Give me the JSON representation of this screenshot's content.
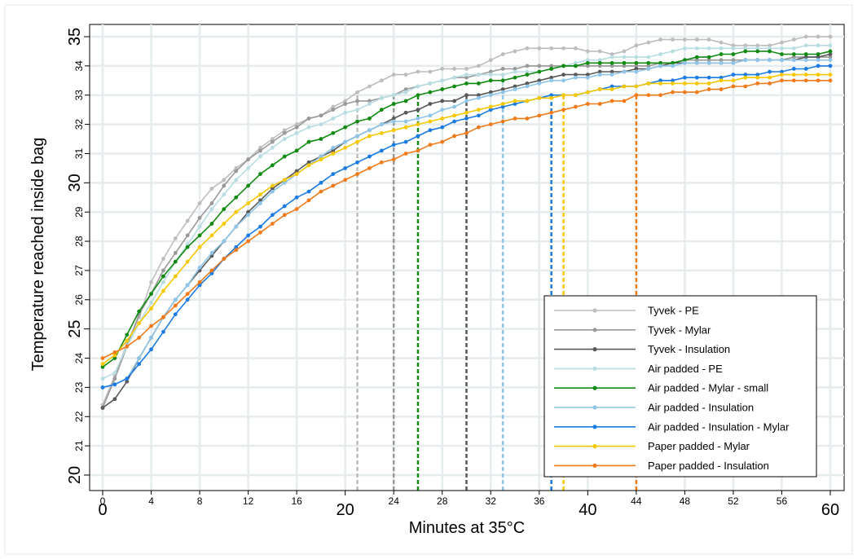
{
  "chart_data": {
    "type": "line",
    "xlabel": "Minutes at 35°C",
    "ylabel": "Temperature reached inside bag",
    "xlim": [
      0,
      60
    ],
    "ylim": [
      20,
      35
    ],
    "grid": true,
    "legend_position": "bottom-right",
    "x_ticks_small": [
      "0",
      "4",
      "8",
      "12",
      "16",
      "24",
      "28",
      "32",
      "36",
      "44",
      "48",
      "52",
      "56"
    ],
    "x_ticks_small_values": [
      0,
      4,
      8,
      12,
      16,
      24,
      28,
      32,
      36,
      44,
      48,
      52,
      56
    ],
    "x_ticks_large": [
      "0",
      "20",
      "40",
      "60"
    ],
    "x_ticks_large_values": [
      0,
      20,
      40,
      60
    ],
    "y_ticks_small": [
      "21",
      "22",
      "23",
      "24",
      "26",
      "27",
      "28",
      "29",
      "31",
      "32",
      "33",
      "34"
    ],
    "y_ticks_small_values": [
      21,
      22,
      23,
      24,
      26,
      27,
      28,
      29,
      31,
      32,
      33,
      34
    ],
    "y_ticks_large": [
      "20",
      "25",
      "30",
      "35"
    ],
    "y_ticks_large_values": [
      20,
      25,
      30,
      35
    ],
    "series": [
      {
        "name": "Tyvek - PE",
        "color": "#bdbdbd",
        "marker_minutes": 21,
        "x": [
          0,
          1,
          2,
          3,
          4,
          5,
          6,
          7,
          8,
          9,
          10,
          11,
          12,
          13,
          14,
          15,
          16,
          17,
          18,
          19,
          20,
          21,
          22,
          23,
          24,
          25,
          26,
          27,
          28,
          29,
          30,
          31,
          32,
          33,
          34,
          35,
          36,
          37,
          38,
          39,
          40,
          41,
          42,
          43,
          44,
          45,
          46,
          47,
          48,
          49,
          50,
          51,
          52,
          53,
          54,
          55,
          56,
          57,
          58,
          59,
          60
        ],
        "values": [
          22.4,
          23.4,
          24.5,
          25.4,
          26.6,
          27.4,
          28.1,
          28.7,
          29.3,
          29.8,
          30.1,
          30.5,
          30.8,
          31.2,
          31.5,
          31.8,
          32.0,
          32.2,
          32.3,
          32.6,
          32.8,
          33.1,
          33.3,
          33.5,
          33.7,
          33.7,
          33.8,
          33.8,
          33.9,
          33.9,
          33.9,
          34.0,
          34.2,
          34.4,
          34.5,
          34.6,
          34.6,
          34.6,
          34.6,
          34.6,
          34.5,
          34.5,
          34.4,
          34.5,
          34.7,
          34.8,
          34.9,
          34.9,
          34.9,
          34.9,
          34.9,
          34.8,
          34.7,
          34.7,
          34.7,
          34.7,
          34.8,
          34.9,
          35.0,
          35.0,
          35.0
        ]
      },
      {
        "name": "Tyvek - Mylar",
        "color": "#999999",
        "marker_minutes": 24,
        "x": [
          0,
          1,
          2,
          3,
          4,
          5,
          6,
          7,
          8,
          9,
          10,
          11,
          12,
          13,
          14,
          15,
          16,
          17,
          18,
          19,
          20,
          21,
          22,
          23,
          24,
          25,
          26,
          27,
          28,
          29,
          30,
          31,
          32,
          33,
          34,
          35,
          36,
          37,
          38,
          39,
          40,
          41,
          42,
          43,
          44,
          45,
          46,
          47,
          48,
          49,
          50,
          51,
          52,
          53,
          54,
          55,
          56,
          57,
          58,
          59,
          60
        ],
        "values": [
          22.3,
          23.3,
          24.4,
          25.5,
          26.2,
          27.0,
          27.6,
          28.2,
          28.8,
          29.3,
          29.9,
          30.4,
          30.8,
          31.1,
          31.4,
          31.7,
          31.9,
          32.2,
          32.3,
          32.5,
          32.7,
          32.8,
          32.8,
          32.9,
          33.0,
          33.2,
          33.3,
          33.4,
          33.5,
          33.6,
          33.6,
          33.7,
          33.8,
          33.9,
          33.9,
          34.0,
          34.0,
          34.0,
          34.0,
          34.0,
          34.0,
          34.0,
          34.0,
          34.0,
          34.0,
          34.0,
          34.1,
          34.1,
          34.2,
          34.2,
          34.2,
          34.2,
          34.2,
          34.2,
          34.2,
          34.2,
          34.2,
          34.3,
          34.3,
          34.3,
          34.3
        ]
      },
      {
        "name": "Tyvek - Insulation",
        "color": "#595959",
        "marker_minutes": 30,
        "x": [
          0,
          1,
          2,
          3,
          4,
          5,
          6,
          7,
          8,
          9,
          10,
          11,
          12,
          13,
          14,
          15,
          16,
          17,
          18,
          19,
          20,
          21,
          22,
          23,
          24,
          25,
          26,
          27,
          28,
          29,
          30,
          31,
          32,
          33,
          34,
          35,
          36,
          37,
          38,
          39,
          40,
          41,
          42,
          43,
          44,
          45,
          46,
          47,
          48,
          49,
          50,
          51,
          52,
          53,
          54,
          55,
          56,
          57,
          58,
          59,
          60
        ],
        "values": [
          22.3,
          22.6,
          23.2,
          24.0,
          24.7,
          25.4,
          26.0,
          26.5,
          27.0,
          27.5,
          28.0,
          28.5,
          29.0,
          29.4,
          29.8,
          30.1,
          30.4,
          30.7,
          30.9,
          31.1,
          31.4,
          31.6,
          31.8,
          32.0,
          32.2,
          32.4,
          32.5,
          32.7,
          32.8,
          32.8,
          33.0,
          33.0,
          33.1,
          33.2,
          33.3,
          33.4,
          33.5,
          33.6,
          33.7,
          33.7,
          33.7,
          33.8,
          33.8,
          33.8,
          33.9,
          33.9,
          34.0,
          34.1,
          34.1,
          34.1,
          34.1,
          34.1,
          34.1,
          34.2,
          34.2,
          34.2,
          34.2,
          34.2,
          34.3,
          34.3,
          34.4
        ]
      },
      {
        "name": "Air padded - PE",
        "color": "#b7dde3",
        "marker_minutes": 33,
        "x": [
          0,
          1,
          2,
          3,
          4,
          5,
          6,
          7,
          8,
          9,
          10,
          11,
          12,
          13,
          14,
          15,
          16,
          17,
          18,
          19,
          20,
          21,
          22,
          23,
          24,
          25,
          26,
          27,
          28,
          29,
          30,
          31,
          32,
          33,
          34,
          35,
          36,
          37,
          38,
          39,
          40,
          41,
          42,
          43,
          44,
          45,
          46,
          47,
          48,
          49,
          50,
          51,
          52,
          53,
          54,
          55,
          56,
          57,
          58,
          59,
          60
        ],
        "values": [
          23.3,
          23.5,
          24.4,
          25.2,
          25.9,
          26.6,
          27.3,
          27.9,
          28.5,
          29.1,
          29.6,
          30.1,
          30.5,
          30.9,
          31.2,
          31.5,
          31.7,
          31.9,
          32.0,
          32.2,
          32.4,
          32.5,
          32.7,
          32.9,
          33.0,
          33.1,
          33.3,
          33.4,
          33.5,
          33.6,
          33.7,
          33.7,
          33.7,
          33.7,
          33.8,
          33.8,
          33.8,
          33.9,
          34.0,
          34.1,
          34.2,
          34.2,
          34.3,
          34.3,
          34.3,
          34.3,
          34.4,
          34.5,
          34.6,
          34.6,
          34.6,
          34.6,
          34.6,
          34.6,
          34.6,
          34.6,
          34.6,
          34.6,
          34.7,
          34.7,
          34.7
        ]
      },
      {
        "name": "Air padded - Mylar - small",
        "color": "#108a10",
        "marker_minutes": 26,
        "x": [
          0,
          1,
          2,
          3,
          4,
          5,
          6,
          7,
          8,
          9,
          10,
          11,
          12,
          13,
          14,
          15,
          16,
          17,
          18,
          19,
          20,
          21,
          22,
          23,
          24,
          25,
          26,
          27,
          28,
          29,
          30,
          31,
          32,
          33,
          34,
          35,
          36,
          37,
          38,
          39,
          40,
          41,
          42,
          43,
          44,
          45,
          46,
          47,
          48,
          49,
          50,
          51,
          52,
          53,
          54,
          55,
          56,
          57,
          58,
          59,
          60
        ],
        "values": [
          23.7,
          24.0,
          24.8,
          25.6,
          26.2,
          26.8,
          27.3,
          27.8,
          28.2,
          28.6,
          29.1,
          29.5,
          29.9,
          30.3,
          30.6,
          30.9,
          31.1,
          31.4,
          31.5,
          31.7,
          31.9,
          32.1,
          32.2,
          32.5,
          32.7,
          32.8,
          33.0,
          33.1,
          33.2,
          33.3,
          33.4,
          33.4,
          33.5,
          33.5,
          33.6,
          33.7,
          33.8,
          33.9,
          34.0,
          34.0,
          34.1,
          34.1,
          34.1,
          34.1,
          34.1,
          34.1,
          34.1,
          34.1,
          34.2,
          34.3,
          34.3,
          34.4,
          34.4,
          34.5,
          34.5,
          34.5,
          34.4,
          34.4,
          34.4,
          34.4,
          34.5
        ]
      },
      {
        "name": "Air padded - Insulation",
        "color": "#8ec5e8",
        "marker_minutes": 33,
        "x": [
          0,
          1,
          2,
          3,
          4,
          5,
          6,
          7,
          8,
          9,
          10,
          11,
          12,
          13,
          14,
          15,
          16,
          17,
          18,
          19,
          20,
          21,
          22,
          23,
          24,
          25,
          26,
          27,
          28,
          29,
          30,
          31,
          32,
          33,
          34,
          35,
          36,
          37,
          38,
          39,
          40,
          41,
          42,
          43,
          44,
          45,
          46,
          47,
          48,
          49,
          50,
          51,
          52,
          53,
          54,
          55,
          56,
          57,
          58,
          59,
          60
        ],
        "values": [
          23.0,
          23.1,
          23.3,
          24.0,
          24.7,
          25.4,
          26.0,
          26.5,
          27.1,
          27.6,
          28.0,
          28.5,
          28.9,
          29.3,
          29.7,
          30.0,
          30.3,
          30.6,
          30.9,
          31.2,
          31.4,
          31.6,
          31.8,
          32.0,
          32.1,
          32.1,
          32.2,
          32.3,
          32.5,
          32.6,
          32.8,
          32.9,
          33.0,
          33.1,
          33.2,
          33.3,
          33.4,
          33.5,
          33.5,
          33.6,
          33.6,
          33.7,
          33.7,
          33.8,
          33.8,
          33.9,
          34.0,
          34.0,
          34.1,
          34.1,
          34.1,
          34.1,
          34.1,
          34.2,
          34.2,
          34.2,
          34.2,
          34.2,
          34.2,
          34.2,
          34.2
        ]
      },
      {
        "name": "Air padded - Insulation - Mylar",
        "color": "#1a7be3",
        "marker_minutes": 37,
        "x": [
          0,
          1,
          2,
          3,
          4,
          5,
          6,
          7,
          8,
          9,
          10,
          11,
          12,
          13,
          14,
          15,
          16,
          17,
          18,
          19,
          20,
          21,
          22,
          23,
          24,
          25,
          26,
          27,
          28,
          29,
          30,
          31,
          32,
          33,
          34,
          35,
          36,
          37,
          38,
          39,
          40,
          41,
          42,
          43,
          44,
          45,
          46,
          47,
          48,
          49,
          50,
          51,
          52,
          53,
          54,
          55,
          56,
          57,
          58,
          59,
          60
        ],
        "values": [
          23.0,
          23.1,
          23.3,
          23.8,
          24.3,
          24.9,
          25.5,
          26.0,
          26.5,
          26.9,
          27.4,
          27.8,
          28.2,
          28.5,
          28.9,
          29.2,
          29.5,
          29.7,
          30.0,
          30.3,
          30.5,
          30.7,
          30.9,
          31.1,
          31.3,
          31.4,
          31.6,
          31.8,
          31.9,
          32.1,
          32.2,
          32.3,
          32.5,
          32.6,
          32.7,
          32.8,
          32.9,
          33.0,
          33.0,
          33.0,
          33.1,
          33.2,
          33.3,
          33.3,
          33.3,
          33.4,
          33.5,
          33.5,
          33.6,
          33.6,
          33.6,
          33.6,
          33.7,
          33.7,
          33.7,
          33.8,
          33.8,
          33.9,
          33.9,
          34.0,
          34.0
        ]
      },
      {
        "name": "Paper padded - Mylar",
        "color": "#f5c800",
        "marker_minutes": 38,
        "x": [
          0,
          1,
          2,
          3,
          4,
          5,
          6,
          7,
          8,
          9,
          10,
          11,
          12,
          13,
          14,
          15,
          16,
          17,
          18,
          19,
          20,
          21,
          22,
          23,
          24,
          25,
          26,
          27,
          28,
          29,
          30,
          31,
          32,
          33,
          34,
          35,
          36,
          37,
          38,
          39,
          40,
          41,
          42,
          43,
          44,
          45,
          46,
          47,
          48,
          49,
          50,
          51,
          52,
          53,
          54,
          55,
          56,
          57,
          58,
          59,
          60
        ],
        "values": [
          23.8,
          24.1,
          24.6,
          25.2,
          25.7,
          26.3,
          26.8,
          27.3,
          27.8,
          28.2,
          28.6,
          29.0,
          29.3,
          29.6,
          29.9,
          30.1,
          30.3,
          30.6,
          30.8,
          31.0,
          31.2,
          31.4,
          31.6,
          31.7,
          31.8,
          31.9,
          32.0,
          32.1,
          32.2,
          32.3,
          32.4,
          32.5,
          32.6,
          32.7,
          32.8,
          32.8,
          32.9,
          32.9,
          33.0,
          33.0,
          33.1,
          33.2,
          33.2,
          33.3,
          33.3,
          33.4,
          33.4,
          33.4,
          33.4,
          33.4,
          33.4,
          33.5,
          33.5,
          33.6,
          33.6,
          33.6,
          33.7,
          33.7,
          33.7,
          33.7,
          33.7
        ]
      },
      {
        "name": "Paper padded - Insulation",
        "color": "#f07b1a",
        "marker_minutes": 44,
        "x": [
          0,
          1,
          2,
          3,
          4,
          5,
          6,
          7,
          8,
          9,
          10,
          11,
          12,
          13,
          14,
          15,
          16,
          17,
          18,
          19,
          20,
          21,
          22,
          23,
          24,
          25,
          26,
          27,
          28,
          29,
          30,
          31,
          32,
          33,
          34,
          35,
          36,
          37,
          38,
          39,
          40,
          41,
          42,
          43,
          44,
          45,
          46,
          47,
          48,
          49,
          50,
          51,
          52,
          53,
          54,
          55,
          56,
          57,
          58,
          59,
          60
        ],
        "values": [
          24.0,
          24.2,
          24.4,
          24.7,
          25.1,
          25.4,
          25.8,
          26.2,
          26.6,
          27.0,
          27.4,
          27.7,
          28.0,
          28.3,
          28.6,
          28.9,
          29.1,
          29.4,
          29.7,
          29.9,
          30.1,
          30.3,
          30.5,
          30.7,
          30.8,
          31.0,
          31.1,
          31.3,
          31.4,
          31.6,
          31.7,
          31.9,
          32.0,
          32.1,
          32.2,
          32.2,
          32.3,
          32.4,
          32.5,
          32.6,
          32.7,
          32.7,
          32.8,
          32.8,
          33.0,
          33.0,
          33.0,
          33.1,
          33.1,
          33.1,
          33.2,
          33.2,
          33.3,
          33.3,
          33.4,
          33.4,
          33.5,
          33.5,
          33.5,
          33.5,
          33.5
        ]
      }
    ]
  }
}
